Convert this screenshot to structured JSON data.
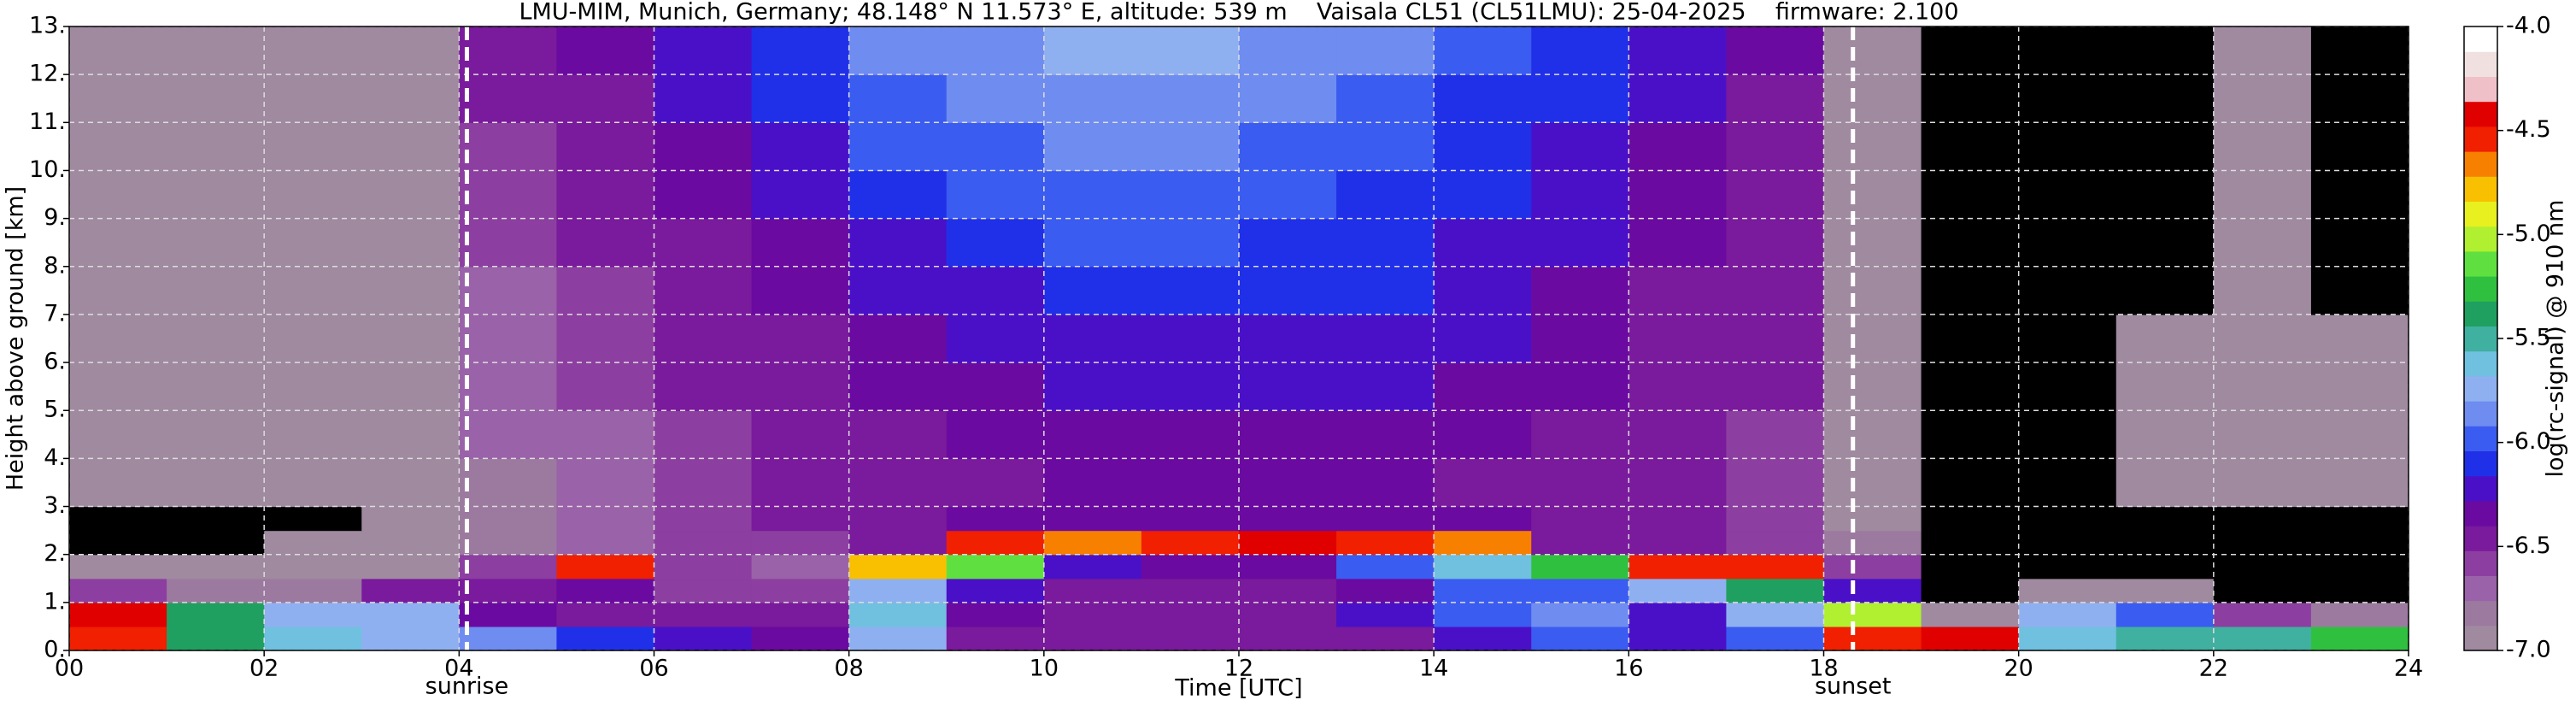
{
  "chart_data": {
    "type": "heatmap",
    "title": "LMU-MIM, Munich, Germany; 48.148° N 11.573° E, altitude: 539 m    Vaisala CL51 (CL51LMU): 25-04-2025    firmware: 2.100",
    "xlabel": "Time [UTC]",
    "ylabel": "Height above ground [km]",
    "colorbar_label": "log(rc-signal) @ 910 nm",
    "xlim": [
      0,
      24
    ],
    "xticks": [
      {
        "value": 0,
        "label": "00"
      },
      {
        "value": 2,
        "label": "02"
      },
      {
        "value": 4,
        "label": "04"
      },
      {
        "value": 6,
        "label": "06"
      },
      {
        "value": 8,
        "label": "08"
      },
      {
        "value": 10,
        "label": "10"
      },
      {
        "value": 12,
        "label": "12"
      },
      {
        "value": 14,
        "label": "14"
      },
      {
        "value": 16,
        "label": "16"
      },
      {
        "value": 18,
        "label": "18"
      },
      {
        "value": 20,
        "label": "20"
      },
      {
        "value": 22,
        "label": "22"
      },
      {
        "value": 24,
        "label": "24"
      }
    ],
    "ylim": [
      0,
      13
    ],
    "yticks": [
      {
        "value": 0,
        "label": "0."
      },
      {
        "value": 1,
        "label": "1."
      },
      {
        "value": 2,
        "label": "2."
      },
      {
        "value": 3,
        "label": "3."
      },
      {
        "value": 4,
        "label": "4."
      },
      {
        "value": 5,
        "label": "5."
      },
      {
        "value": 6,
        "label": "6."
      },
      {
        "value": 7,
        "label": "7."
      },
      {
        "value": 8,
        "label": "8."
      },
      {
        "value": 9,
        "label": "9."
      },
      {
        "value": 10,
        "label": "10."
      },
      {
        "value": 11,
        "label": "11."
      },
      {
        "value": 12,
        "label": "12."
      },
      {
        "value": 13,
        "label": "13."
      }
    ],
    "grid": true,
    "clim": [
      -7,
      -4
    ],
    "cticks": [
      {
        "value": -4,
        "label": "-4.0"
      },
      {
        "value": -4.5,
        "label": "-4.5"
      },
      {
        "value": -5,
        "label": "-5.0"
      },
      {
        "value": -5.5,
        "label": "-5.5"
      },
      {
        "value": -6,
        "label": "-6.0"
      },
      {
        "value": -6.5,
        "label": "-6.5"
      },
      {
        "value": -7,
        "label": "-7.0"
      }
    ],
    "colormap": [
      "#a08aa0",
      "#9c7aa0",
      "#9a62a8",
      "#8c3fa0",
      "#7a1a9c",
      "#6a0aa0",
      "#4a10c8",
      "#2030e8",
      "#3a5cf0",
      "#6f8cf0",
      "#8fb0f0",
      "#70c0e0",
      "#40b0a0",
      "#20a060",
      "#30c040",
      "#60e040",
      "#b0f030",
      "#e8f020",
      "#f8c000",
      "#f88000",
      "#f02000",
      "#e00000",
      "#f0c0c8",
      "#f0e0e0",
      "#ffffff"
    ],
    "under_color": "#000000",
    "xbins": [
      0,
      1,
      2,
      3,
      4,
      5,
      6,
      7,
      8,
      9,
      10,
      11,
      12,
      13,
      14,
      15,
      16,
      17,
      18,
      19,
      20,
      21,
      22,
      23,
      24
    ],
    "ybins": [
      0,
      0.5,
      1,
      1.5,
      2,
      2.5,
      3,
      4,
      5,
      6,
      7,
      8,
      9,
      10,
      11,
      12,
      13
    ],
    "z": [
      [
        -4.5,
        -5.4,
        -5.6,
        -5.7,
        -5.9,
        -6.1,
        -6.2,
        -6.3,
        -5.8,
        -6.4,
        -6.5,
        -6.5,
        -6.5,
        -6.4,
        -6.2,
        -6.0,
        -6.2,
        -6.0,
        -4.6,
        -4.4,
        -5.6,
        -5.5,
        -5.5,
        -5.3
      ],
      [
        -4.4,
        -5.4,
        -5.7,
        -5.8,
        -6.3,
        -6.4,
        -6.5,
        -6.5,
        -5.6,
        -6.3,
        -6.4,
        -6.5,
        -6.5,
        -6.2,
        -6.0,
        -5.9,
        -6.2,
        -5.8,
        -5.0,
        -6.9,
        -5.8,
        -6.0,
        -6.6,
        -6.8
      ],
      [
        -6.6,
        -6.8,
        -6.8,
        -6.5,
        -6.5,
        -6.3,
        -6.6,
        -6.6,
        -5.8,
        -6.2,
        -6.4,
        -6.5,
        -6.5,
        -6.3,
        -6.0,
        -6.0,
        -5.8,
        -5.4,
        -6.2,
        -7.1,
        -7.0,
        -7.0,
        -7.1,
        -7.1
      ],
      [
        -6.9,
        -7.0,
        -7.0,
        -6.9,
        -6.6,
        -4.6,
        -6.6,
        -6.7,
        -4.8,
        -5.2,
        -6.2,
        -6.3,
        -6.3,
        -6.0,
        -5.6,
        -5.3,
        -4.6,
        -4.5,
        -6.6,
        -7.1,
        -7.1,
        -7.1,
        -7.1,
        -7.1
      ],
      [
        -7.1,
        -7.1,
        -7.0,
        -7.0,
        -6.8,
        -6.7,
        -6.6,
        -6.6,
        -6.4,
        -4.6,
        -4.7,
        -4.5,
        -4.4,
        -4.6,
        -4.7,
        -6.4,
        -6.5,
        -6.6,
        -6.8,
        -7.1,
        -7.1,
        -7.1,
        -7.1,
        -7.1
      ],
      [
        -7.1,
        -7.1,
        -7.1,
        -7.0,
        -6.8,
        -6.7,
        -6.6,
        -6.5,
        -6.4,
        -6.3,
        -6.3,
        -6.3,
        -6.3,
        -6.3,
        -6.3,
        -6.4,
        -6.5,
        -6.6,
        -6.9,
        -7.1,
        -7.1,
        -7.1,
        -7.1,
        -7.1
      ],
      [
        -6.9,
        -7.0,
        -7.0,
        -7.0,
        -6.8,
        -6.7,
        -6.6,
        -6.5,
        -6.4,
        -6.4,
        -6.3,
        -6.3,
        -6.3,
        -6.3,
        -6.4,
        -6.4,
        -6.5,
        -6.6,
        -6.9,
        -7.1,
        -7.1,
        -7.0,
        -7.0,
        -7.0
      ],
      [
        -6.9,
        -7.0,
        -7.0,
        -7.0,
        -6.7,
        -6.7,
        -6.6,
        -6.5,
        -6.4,
        -6.3,
        -6.3,
        -6.3,
        -6.3,
        -6.3,
        -6.3,
        -6.4,
        -6.5,
        -6.6,
        -6.9,
        -7.1,
        -7.1,
        -7.0,
        -7.0,
        -7.0
      ],
      [
        -6.9,
        -7.0,
        -7.0,
        -7.0,
        -6.7,
        -6.6,
        -6.5,
        -6.4,
        -6.3,
        -6.3,
        -6.2,
        -6.2,
        -6.2,
        -6.2,
        -6.3,
        -6.3,
        -6.4,
        -6.5,
        -6.9,
        -7.1,
        -7.1,
        -7.0,
        -7.0,
        -7.0
      ],
      [
        -7.0,
        -7.0,
        -7.0,
        -7.0,
        -6.7,
        -6.6,
        -6.5,
        -6.4,
        -6.3,
        -6.2,
        -6.2,
        -6.2,
        -6.2,
        -6.2,
        -6.2,
        -6.3,
        -6.4,
        -6.5,
        -6.9,
        -7.1,
        -7.1,
        -7.0,
        -7.0,
        -7.0
      ],
      [
        -7.0,
        -7.0,
        -7.0,
        -7.0,
        -6.7,
        -6.6,
        -6.4,
        -6.3,
        -6.2,
        -6.2,
        -6.1,
        -6.1,
        -6.1,
        -6.1,
        -6.2,
        -6.3,
        -6.4,
        -6.5,
        -7.0,
        -7.1,
        -7.1,
        -7.1,
        -7.0,
        -7.1
      ],
      [
        -7.0,
        -7.0,
        -7.0,
        -7.0,
        -6.6,
        -6.5,
        -6.4,
        -6.3,
        -6.2,
        -6.1,
        -6.0,
        -6.0,
        -6.1,
        -6.1,
        -6.2,
        -6.2,
        -6.3,
        -6.5,
        -7.0,
        -7.1,
        -7.1,
        -7.1,
        -7.0,
        -7.1
      ],
      [
        -7.0,
        -7.0,
        -7.0,
        -7.0,
        -6.6,
        -6.5,
        -6.3,
        -6.2,
        -6.1,
        -6.0,
        -6.0,
        -6.0,
        -6.0,
        -6.1,
        -6.1,
        -6.2,
        -6.3,
        -6.4,
        -7.0,
        -7.1,
        -7.1,
        -7.1,
        -7.0,
        -7.1
      ],
      [
        -7.0,
        -7.0,
        -7.0,
        -7.0,
        -6.6,
        -6.4,
        -6.3,
        -6.2,
        -6.0,
        -6.0,
        -5.9,
        -5.9,
        -6.0,
        -6.0,
        -6.1,
        -6.2,
        -6.3,
        -6.4,
        -7.0,
        -7.1,
        -7.1,
        -7.1,
        -7.0,
        -7.1
      ],
      [
        -7.0,
        -7.0,
        -7.0,
        -7.0,
        -6.5,
        -6.4,
        -6.2,
        -6.1,
        -6.0,
        -5.9,
        -5.9,
        -5.9,
        -5.9,
        -6.0,
        -6.1,
        -6.1,
        -6.2,
        -6.4,
        -7.0,
        -7.1,
        -7.1,
        -7.1,
        -7.0,
        -7.1
      ],
      [
        -7.0,
        -7.0,
        -7.0,
        -7.0,
        -6.5,
        -6.3,
        -6.2,
        -6.1,
        -5.9,
        -5.9,
        -5.8,
        -5.8,
        -5.9,
        -5.9,
        -6.0,
        -6.1,
        -6.2,
        -6.3,
        -7.0,
        -7.1,
        -7.1,
        -7.1,
        -7.0,
        -7.1
      ]
    ],
    "annotations": [
      {
        "x": 4.08,
        "label": "sunrise"
      },
      {
        "x": 18.3,
        "label": "sunset"
      }
    ]
  }
}
